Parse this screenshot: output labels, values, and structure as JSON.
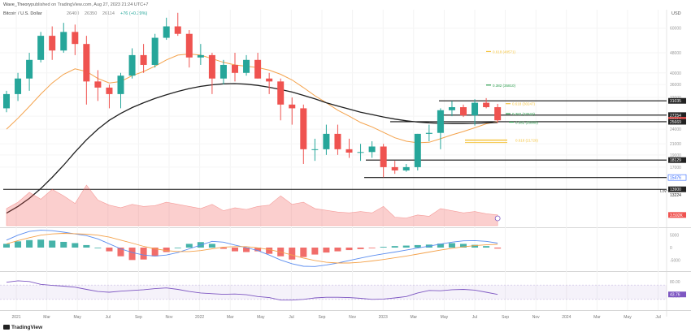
{
  "header": {
    "publisher": "Wave_Theory",
    "published_line": "published on TradingView.com, Aug 27, 2023 21:24 UTC+7",
    "symbol": "Bitcoin / U.S. Dollar",
    "ohlc": [
      "26400",
      "26350",
      "26114",
      "+76 (+0.29%)"
    ],
    "currency": "USD"
  },
  "footer": {
    "brand": "TradingView"
  },
  "colors": {
    "up": "#26a69a",
    "down": "#ef5350",
    "ema_orange": "#f4a24b",
    "ema_black": "#1f1f1f",
    "fib": "#f5c542",
    "fib_green": "#2e9e4f",
    "macd_line": "#5b8def",
    "signal_line": "#f4a24b",
    "rsi": "#7e57c2"
  },
  "chart_data": [
    {
      "type": "candlestick",
      "name": "price",
      "title": "",
      "x_axis_labels": [
        "2021",
        "Mar",
        "May",
        "Jul",
        "Sep",
        "Nov",
        "2022",
        "Mar",
        "May",
        "Jul",
        "Sep",
        "Nov",
        "2023",
        "Mar",
        "May",
        "Jul",
        "Sep",
        "Nov",
        "2024",
        "Mar",
        "May",
        "Jul"
      ],
      "y_scale": "log",
      "ylim": [
        11000,
        72000
      ],
      "y_tick_labels": [
        "60000",
        "48000",
        "40000",
        "36000",
        "32000",
        "27000",
        "24000",
        "21000",
        "19000",
        "17000"
      ],
      "right_price_labels": [
        {
          "label": "31035",
          "value": 31035
        },
        {
          "label": "27254",
          "value": 27254
        },
        {
          "label": "26114",
          "value": 26114
        },
        {
          "label": "25669",
          "value": 25669
        },
        {
          "label": "18129",
          "value": 18129
        },
        {
          "label": "15476",
          "value": 15476
        },
        {
          "label": "13900",
          "value": 13900
        },
        {
          "label": "13224",
          "value": 13224
        }
      ],
      "horizontal_levels": [
        31035,
        27254,
        25669,
        18129,
        15476,
        13900
      ],
      "fib_annotations": [
        {
          "text": "0.618 (48571)",
          "value": 48571
        },
        {
          "text": "0.382 (35810)",
          "value": 35810
        },
        {
          "text": "0.618 (30247)",
          "value": 30247
        },
        {
          "text": "0.382 (27623)",
          "value": 27623
        },
        {
          "text": "0.382 (25580)",
          "value": 25580
        },
        {
          "text": "0.618 (21726)",
          "value": 21726
        }
      ],
      "low_label": "Low",
      "candles": [
        [
          29000,
          34000,
          28000,
          33000
        ],
        [
          33000,
          40000,
          31000,
          38000
        ],
        [
          38000,
          48000,
          34000,
          45000
        ],
        [
          45000,
          58000,
          44000,
          56000
        ],
        [
          56000,
          61000,
          45000,
          49000
        ],
        [
          49000,
          63000,
          48000,
          58000
        ],
        [
          58000,
          62000,
          47000,
          52000
        ],
        [
          52000,
          56000,
          30000,
          37000
        ],
        [
          37000,
          41000,
          31000,
          35000
        ],
        [
          35000,
          36000,
          29000,
          33000
        ],
        [
          33000,
          40000,
          29000,
          39000
        ],
        [
          39000,
          50000,
          38000,
          47000
        ],
        [
          47000,
          52000,
          40000,
          43000
        ],
        [
          43000,
          57000,
          42000,
          55000
        ],
        [
          55000,
          66000,
          54000,
          61000
        ],
        [
          61000,
          69000,
          56000,
          57000
        ],
        [
          57000,
          59000,
          42000,
          46000
        ],
        [
          46000,
          52000,
          43000,
          47000
        ],
        [
          47000,
          48000,
          33000,
          38000
        ],
        [
          38000,
          45000,
          36000,
          43000
        ],
        [
          43000,
          48000,
          37000,
          40000
        ],
        [
          40000,
          47000,
          39000,
          45000
        ],
        [
          45000,
          48000,
          38000,
          38000
        ],
        [
          38000,
          40000,
          33000,
          37000
        ],
        [
          37000,
          38000,
          26000,
          30000
        ],
        [
          30000,
          32000,
          25000,
          29000
        ],
        [
          29000,
          30000,
          17500,
          20000
        ],
        [
          20000,
          22000,
          18000,
          20000
        ],
        [
          20000,
          25000,
          19000,
          23000
        ],
        [
          23000,
          25000,
          19000,
          20000
        ],
        [
          20000,
          22000,
          18500,
          19400
        ],
        [
          19400,
          21000,
          18000,
          19500
        ],
        [
          19500,
          21500,
          18500,
          20500
        ],
        [
          20500,
          21000,
          15500,
          17000
        ],
        [
          17000,
          18000,
          16000,
          16500
        ],
        [
          16500,
          17500,
          16300,
          17000
        ],
        [
          17000,
          23000,
          16500,
          23000
        ],
        [
          23000,
          25000,
          21500,
          23200
        ],
        [
          23200,
          29000,
          20000,
          28500
        ],
        [
          28500,
          31000,
          27000,
          29300
        ],
        [
          29300,
          30000,
          26800,
          27200
        ],
        [
          27200,
          31500,
          24800,
          30500
        ],
        [
          30500,
          31800,
          29000,
          29300
        ],
        [
          29300,
          30200,
          25400,
          26000
        ]
      ],
      "ema_orange": [
        24000,
        26500,
        29500,
        33000,
        36500,
        39500,
        41500,
        40500,
        38000,
        36500,
        37000,
        39000,
        40500,
        42500,
        45000,
        47000,
        47500,
        47000,
        45500,
        44000,
        43000,
        42500,
        42000,
        41000,
        39500,
        37500,
        35000,
        32500,
        30500,
        28500,
        27000,
        25500,
        24500,
        23300,
        22200,
        21500,
        21200,
        21300,
        22000,
        22800,
        23500,
        24300,
        25200,
        25700
      ],
      "ema_black": [
        11200,
        11900,
        12800,
        14000,
        15500,
        17300,
        19500,
        21800,
        24000,
        26000,
        27700,
        29200,
        30500,
        31700,
        32800,
        33800,
        34700,
        35400,
        35900,
        36200,
        36300,
        36100,
        35700,
        35100,
        34400,
        33600,
        32600,
        31600,
        30500,
        29600,
        28800,
        28000,
        27400,
        26800,
        26300,
        25900,
        25600,
        25400,
        25300,
        25250,
        25250,
        25300,
        25400,
        25500
      ]
    },
    {
      "type": "area",
      "name": "volume",
      "last_value_label": "3.592K",
      "values": [
        40,
        55,
        78,
        62,
        85,
        70,
        52,
        95,
        60,
        48,
        42,
        50,
        45,
        47,
        55,
        50,
        45,
        40,
        50,
        35,
        42,
        38,
        45,
        48,
        70,
        50,
        55,
        40,
        36,
        32,
        30,
        33,
        30,
        45,
        20,
        18,
        25,
        22,
        40,
        35,
        30,
        33,
        28,
        25
      ]
    },
    {
      "type": "histogram",
      "name": "MACD",
      "y_tick_labels": [
        "5000",
        "0",
        "-5000"
      ],
      "histogram": [
        1500,
        2500,
        3000,
        3200,
        2800,
        2300,
        1800,
        1000,
        0,
        -1500,
        -3500,
        -5000,
        -4800,
        -3500,
        -1800,
        0,
        1500,
        2200,
        1500,
        -500,
        -1500,
        -1800,
        -1500,
        -2500,
        -3500,
        -4800,
        -3800,
        -2800,
        -2000,
        -1500,
        -1000,
        -600,
        -200,
        300,
        600,
        800,
        1000,
        1200,
        1600,
        1800,
        1500,
        1100,
        600,
        -400
      ],
      "macd_line": [
        3000,
        5000,
        6500,
        7000,
        6800,
        6200,
        5500,
        4800,
        3500,
        1500,
        -500,
        -2000,
        -3000,
        -3400,
        -3000,
        -2000,
        -500,
        1000,
        2500,
        2200,
        1000,
        0,
        -1200,
        -3000,
        -5000,
        -6500,
        -7500,
        -7600,
        -7000,
        -6200,
        -5200,
        -4200,
        -3300,
        -2500,
        -1800,
        -1000,
        -200,
        600,
        1400,
        2200,
        2700,
        2800,
        2500,
        1800
      ],
      "signal_line": [
        1500,
        2800,
        4000,
        5000,
        5500,
        5700,
        5600,
        5400,
        5000,
        4200,
        3000,
        1800,
        500,
        -500,
        -1200,
        -1600,
        -1600,
        -1200,
        -500,
        200,
        400,
        400,
        -100,
        -800,
        -1800,
        -3000,
        -4200,
        -5200,
        -5900,
        -6200,
        -6200,
        -5900,
        -5400,
        -4800,
        -4100,
        -3400,
        -2600,
        -1800,
        -1000,
        -300,
        300,
        800,
        1100,
        1300
      ]
    },
    {
      "type": "line",
      "name": "RSI",
      "y_tick_labels": [
        "80.00",
        "40.00"
      ],
      "last_value_label": "43.76",
      "band": [
        30,
        70
      ],
      "values": [
        78,
        82,
        80,
        72,
        69,
        67,
        64,
        58,
        52,
        50,
        53,
        55,
        57,
        60,
        62,
        58,
        52,
        48,
        46,
        44,
        45,
        43,
        38,
        35,
        28,
        28,
        30,
        34,
        36,
        36,
        35,
        33,
        30,
        31,
        34,
        38,
        48,
        55,
        54,
        57,
        58,
        56,
        50,
        43.76
      ]
    }
  ]
}
